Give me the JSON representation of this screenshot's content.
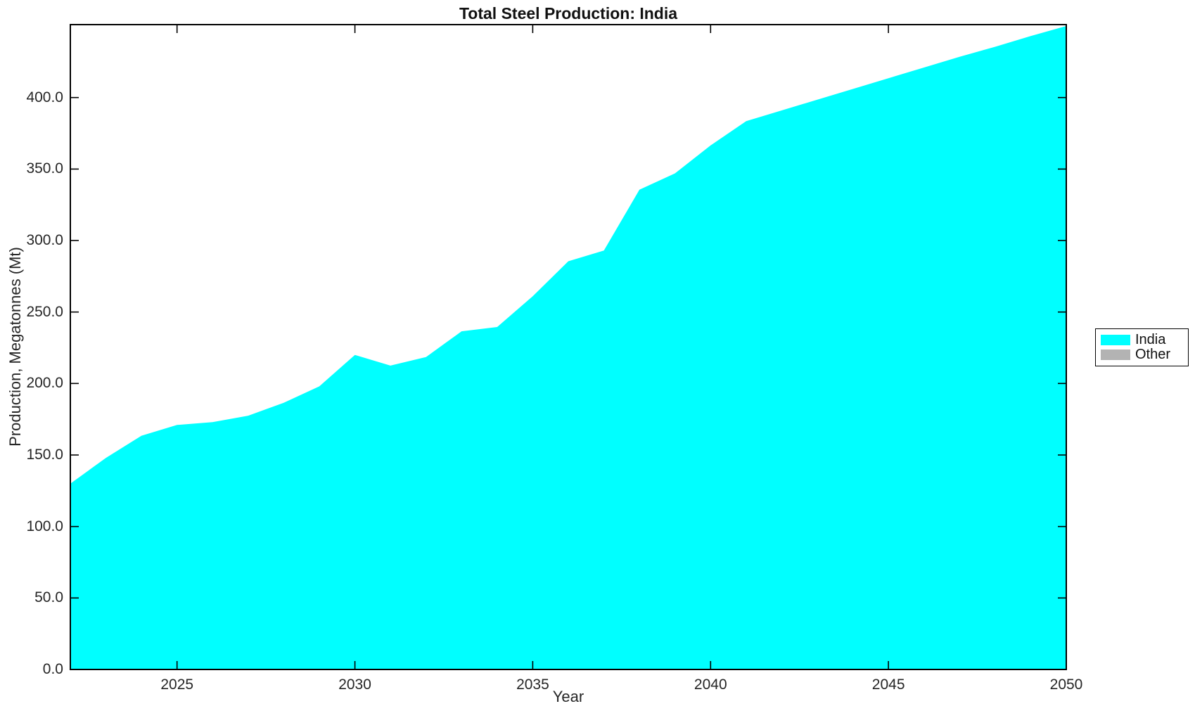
{
  "figure": {
    "background": "#FFFFFF",
    "axis_color": "#000000",
    "text_color": "#262626"
  },
  "chart_data": {
    "type": "area",
    "title": "Total Steel Production: India",
    "xlabel": "Year",
    "ylabel": "Production, Megatonnes (Mt)",
    "xlim": [
      2022,
      2050
    ],
    "ylim": [
      0,
      451
    ],
    "grid": false,
    "legend_position": "outside-right",
    "x": [
      2022,
      2023,
      2024,
      2025,
      2026,
      2027,
      2028,
      2029,
      2030,
      2031,
      2032,
      2033,
      2034,
      2035,
      2036,
      2037,
      2038,
      2039,
      2040,
      2041,
      2042,
      2043,
      2044,
      2045,
      2046,
      2047,
      2048,
      2049,
      2050
    ],
    "series": [
      {
        "name": "India",
        "color": "#00FFFF",
        "values": [
          130,
          148,
          163.5,
          171,
          173,
          177.5,
          186.5,
          198,
          220,
          212.5,
          218.5,
          236.5,
          239.5,
          261,
          285.5,
          293,
          335.5,
          347,
          366.5,
          383.5,
          391,
          398.5,
          406,
          413.5,
          421,
          428.5,
          435.5,
          443,
          450
        ]
      },
      {
        "name": "Other",
        "color": "#B3B3B3",
        "values": [
          0,
          0,
          0,
          0,
          0,
          0,
          0,
          0,
          0,
          0,
          0,
          0,
          0,
          0,
          0,
          0,
          0,
          0,
          0,
          0,
          0,
          0,
          0,
          0,
          0,
          0,
          0,
          0,
          0
        ]
      }
    ],
    "xticks": [
      2025,
      2030,
      2035,
      2040,
      2045,
      2050
    ],
    "xtick_labels": [
      "2025",
      "2030",
      "2035",
      "2040",
      "2045",
      "2050"
    ],
    "yticks": [
      0,
      50,
      100,
      150,
      200,
      250,
      300,
      350,
      400
    ],
    "ytick_labels": [
      "0.0",
      "50.0",
      "100.0",
      "150.0",
      "200.0",
      "250.0",
      "300.0",
      "350.0",
      "400.0"
    ]
  }
}
